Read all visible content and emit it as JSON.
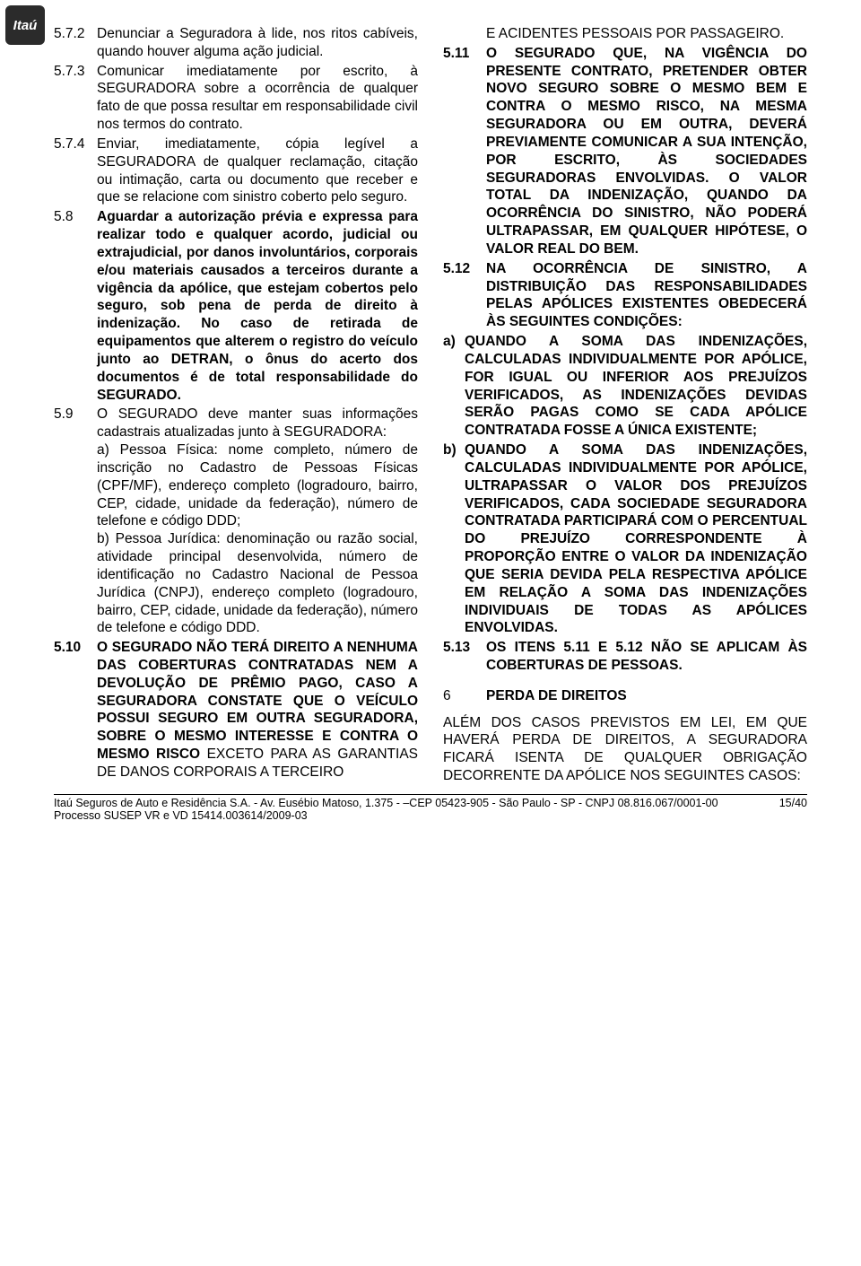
{
  "logo": "Itaú",
  "left": {
    "i572_num": "5.7.2",
    "i572_txt": "Denunciar a Seguradora à lide, nos ritos cabíveis, quando houver alguma ação judicial.",
    "i573_num": "5.7.3",
    "i573_txt": "Comunicar imediatamente por escrito, à SEGURADORA sobre a ocorrência de qualquer fato de que possa resultar em responsabilidade civil nos termos do contrato.",
    "i574_num": "5.7.4",
    "i574_txt": "Enviar, imediatamente, cópia legível a SEGURADORA de qualquer reclamação, citação ou intimação, carta ou documento que receber e que se relacione com sinistro coberto pelo seguro.",
    "i58_num": "5.8",
    "i58_txt_bold": "Aguardar a autorização prévia e expressa para realizar todo e qualquer acordo, judicial ou extrajudicial, por danos involuntários, corporais e/ou materiais causados a terceiros durante a vigência da apólice, que estejam cobertos pelo seguro, sob pena de perda de direito à indenização. No caso de retirada de equipamentos que alterem o registro do veículo junto ao DETRAN, o ônus do acerto dos documentos é de total responsabilidade do SEGURADO.",
    "i59_num": "5.9",
    "i59_intro": "O SEGURADO deve manter suas informações cadastrais atualizadas junto à SEGURADORA:",
    "i59_a": "a)    Pessoa Física: nome completo, número de inscrição no Cadastro de Pessoas Físicas (CPF/MF), endereço completo (logradouro, bairro, CEP, cidade, unidade da federação), número de telefone e código DDD;",
    "i59_b": "b)    Pessoa Jurídica: denominação ou razão social, atividade principal desenvolvida, número de identificação no Cadastro Nacional de Pessoa Jurídica (CNPJ), endereço completo (logradouro, bairro, CEP, cidade, unidade da federação), número de telefone e código DDD.",
    "i510_num": "5.10",
    "i510_bold": "O SEGURADO NÃO TERÁ DIREITO A NENHUMA DAS COBERTURAS CONTRATADAS NEM A DEVOLUÇÃO DE PRÊMIO PAGO, CASO A SEGURADORA CONSTATE QUE O VEÍCULO POSSUI SEGURO EM OUTRA SEGURADORA, SOBRE O MESMO INTERESSE E CONTRA O MESMO RISCO ",
    "i510_rest": "EXCETO PARA AS GARANTIAS DE DANOS CORPORAIS A TERCEIRO"
  },
  "right": {
    "cont": "E ACIDENTES PESSOAIS POR PASSAGEIRO.",
    "i511_num": "5.11",
    "i511_txt": "O SEGURADO QUE, NA VIGÊNCIA DO PRESENTE CONTRATO, PRETENDER OBTER NOVO SEGURO SOBRE O MESMO BEM E CONTRA O MESMO RISCO, NA MESMA SEGURADORA OU EM OUTRA, DEVERÁ PREVIAMENTE COMUNICAR A SUA INTENÇÃO, POR ESCRITO, ÀS SOCIEDADES SEGURADORAS ENVOLVIDAS. O VALOR TOTAL DA INDENIZAÇÃO, QUANDO DA OCORRÊNCIA DO SINISTRO, NÃO PODERÁ ULTRAPASSAR, EM QUALQUER HIPÓTESE, O VALOR REAL DO BEM.",
    "i512_num": "5.12",
    "i512_txt": "NA OCORRÊNCIA DE SINISTRO, A DISTRIBUIÇÃO DAS RESPONSABILIDADES PELAS APÓLICES EXISTENTES OBEDECERÁ ÀS SEGUINTES CONDIÇÕES:",
    "i512_a_num": "a)",
    "i512_a": "QUANDO A SOMA DAS INDENIZAÇÕES, CALCULADAS INDIVIDUALMENTE POR APÓLICE, FOR IGUAL OU INFERIOR AOS PREJUÍZOS VERIFICADOS, AS INDENIZAÇÕES DEVIDAS SERÃO PAGAS COMO SE CADA APÓLICE CONTRATADA FOSSE A ÚNICA EXISTENTE;",
    "i512_b_num": "b)",
    "i512_b": "QUANDO A SOMA DAS INDENIZAÇÕES, CALCULADAS INDIVIDUALMENTE POR APÓLICE, ULTRAPASSAR O VALOR DOS PREJUÍZOS VERIFICADOS, CADA SOCIEDADE SEGURADORA CONTRATADA PARTICIPARÁ COM O PERCENTUAL DO PREJUÍZO CORRESPONDENTE À PROPORÇÃO ENTRE O VALOR DA INDENIZAÇÃO QUE SERIA DEVIDA PELA RESPECTIVA APÓLICE EM RELAÇÃO A SOMA DAS INDENIZAÇÕES INDIVIDUAIS DE TODAS AS APÓLICES ENVOLVIDAS.",
    "i513_num": "5.13",
    "i513_txt": "OS ITENS 5.11 E 5.12 NÃO SE APLICAM ÀS COBERTURAS DE PESSOAS.",
    "sec6_num": "6",
    "sec6_title": "PERDA DE DIREITOS",
    "sec6_p": "ALÉM DOS CASOS PREVISTOS EM LEI, EM QUE HAVERÁ PERDA DE DIREITOS, A SEGURADORA FICARÁ ISENTA DE QUALQUER OBRIGAÇÃO DECORRENTE DA APÓLICE NOS SEGUINTES CASOS:"
  },
  "footer": {
    "line1": "Itaú Seguros de Auto e Residência S.A. - Av. Eusébio Matoso, 1.375 - –CEP 05423-905 - São Paulo - SP - CNPJ 08.816.067/0001-00",
    "line2": "Processo SUSEP VR e VD 15414.003614/2009-03",
    "page": "15/40"
  }
}
